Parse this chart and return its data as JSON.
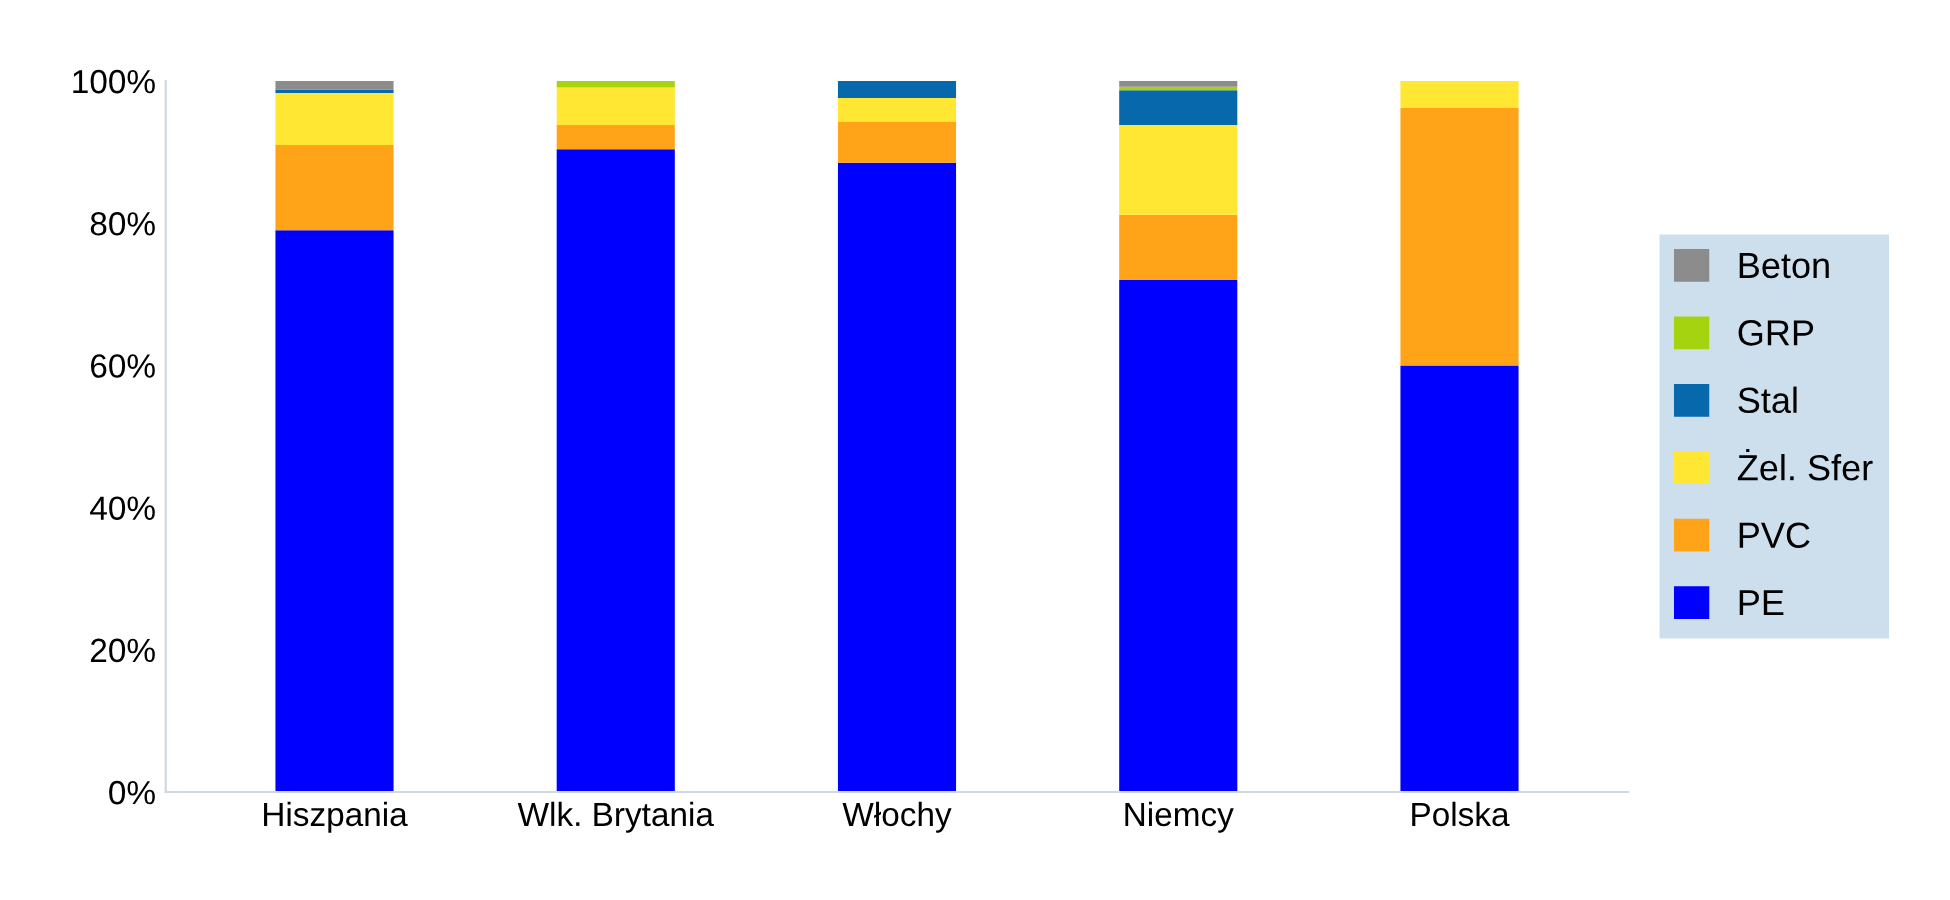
{
  "chart_data": {
    "type": "bar",
    "stacked": true,
    "categories": [
      "Hiszpania",
      "Wlk. Brytania",
      "Włochy",
      "Niemcy",
      "Polska"
    ],
    "series": [
      {
        "name": "PE",
        "color": "#0000ff",
        "values": [
          79,
          90.4,
          88.5,
          72,
          60
        ]
      },
      {
        "name": "PVC",
        "color": "#ffa419",
        "values": [
          12,
          3.4,
          5.8,
          9.2,
          36.2
        ]
      },
      {
        "name": "Żel. Sfer",
        "color": "#ffe733",
        "values": [
          7.3,
          5.3,
          3.3,
          12.6,
          3.8
        ]
      },
      {
        "name": "Stal",
        "color": "#0868ac",
        "values": [
          0.5,
          0,
          2.4,
          4.9,
          0
        ]
      },
      {
        "name": "GRP",
        "color": "#a6d30f",
        "values": [
          0,
          0.9,
          0,
          0.5,
          0
        ]
      },
      {
        "name": "Beton",
        "color": "#8c8c8c",
        "values": [
          1.2,
          0,
          0,
          0.8,
          0
        ]
      }
    ],
    "ylim": [
      0,
      100
    ],
    "yticks": [
      {
        "value": 0,
        "label": "0%"
      },
      {
        "value": 20,
        "label": "20%"
      },
      {
        "value": 40,
        "label": "40%"
      },
      {
        "value": 60,
        "label": "60%"
      },
      {
        "value": 80,
        "label": "80%"
      },
      {
        "value": 100,
        "label": "100%"
      }
    ],
    "grid": false,
    "legend": "right"
  }
}
